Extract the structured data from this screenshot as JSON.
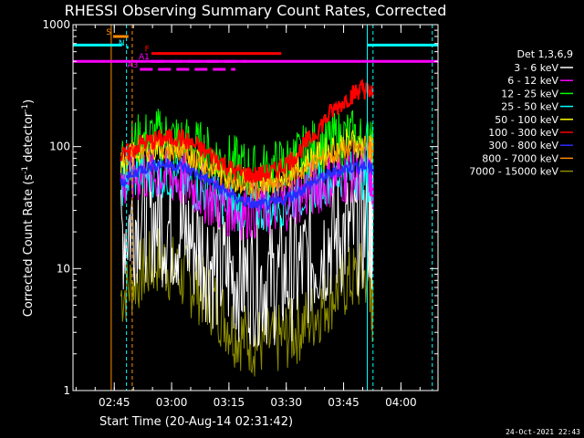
{
  "chart_data": {
    "type": "line",
    "title": "RHESSI Observing Summary Count Rates, Corrected",
    "xlabel": "Start Time (20-Aug-14 02:31:42)",
    "ylabel": "Corrected Count Rate (s⁻¹ detector⁻¹)",
    "ylabel_main": "Corrected Count Rate (s",
    "ylabel_sup1": "-1",
    "ylabel_mid": " detector",
    "ylabel_sup2": "-1",
    "ylabel_end": ")",
    "yscale": "log",
    "ylim": [
      1,
      1000
    ],
    "xlim_minutes": [
      2.5,
      98
    ],
    "y_ticks": [
      {
        "value": 1,
        "label": "1"
      },
      {
        "value": 10,
        "label": "10"
      },
      {
        "value": 100,
        "label": "100"
      },
      {
        "value": 1000,
        "label": "1000"
      }
    ],
    "x_ticks": [
      {
        "minute": 13.3,
        "label": "02:45"
      },
      {
        "minute": 28.3,
        "label": "03:00"
      },
      {
        "minute": 43.3,
        "label": "03:15"
      },
      {
        "minute": 58.3,
        "label": "03:30"
      },
      {
        "minute": 73.3,
        "label": "03:45"
      },
      {
        "minute": 88.3,
        "label": "04:00"
      }
    ],
    "legend_title": "Det 1,3,6,9",
    "legend_position": "right",
    "series": [
      {
        "name": "3 - 6 keV",
        "color": "#ffffff",
        "x": [
          15,
          20,
          25,
          30,
          35,
          40,
          45,
          50,
          55,
          60,
          65,
          70,
          75,
          80,
          81
        ],
        "y": [
          20,
          28,
          25,
          20,
          16,
          10,
          9,
          8,
          8,
          9,
          12,
          18,
          20,
          22,
          25
        ]
      },
      {
        "name": "6 - 12 keV",
        "color": "#ff00ff",
        "x": [
          15,
          20,
          25,
          30,
          35,
          40,
          45,
          50,
          55,
          60,
          65,
          70,
          75,
          80,
          81
        ],
        "y": [
          50,
          60,
          60,
          55,
          45,
          35,
          30,
          30,
          32,
          38,
          45,
          55,
          60,
          65,
          50
        ]
      },
      {
        "name": "12 - 25 keV",
        "color": "#00ff00",
        "x": [
          15,
          20,
          25,
          30,
          35,
          40,
          45,
          50,
          55,
          60,
          65,
          70,
          75,
          80,
          81
        ],
        "y": [
          80,
          110,
          120,
          110,
          95,
          80,
          70,
          60,
          65,
          75,
          95,
          110,
          120,
          100,
          90
        ]
      },
      {
        "name": "25 - 50 keV",
        "color": "#00ffff",
        "x": [
          15,
          20,
          25,
          30,
          35,
          40,
          45,
          50,
          55,
          60,
          65,
          70,
          75,
          80,
          81
        ],
        "y": [
          50,
          60,
          60,
          55,
          45,
          38,
          32,
          30,
          32,
          38,
          45,
          55,
          60,
          55,
          50
        ]
      },
      {
        "name": "50 - 100 keV",
        "color": "#ffff00",
        "x": [
          15,
          20,
          25,
          30,
          35,
          40,
          45,
          50,
          55,
          60,
          65,
          70,
          75,
          80,
          81
        ],
        "y": [
          70,
          95,
          100,
          95,
          80,
          65,
          55,
          50,
          55,
          65,
          80,
          95,
          110,
          100,
          90
        ]
      },
      {
        "name": "100 - 300 keV",
        "color": "#ff0000",
        "x": [
          15,
          20,
          25,
          30,
          35,
          40,
          45,
          50,
          55,
          60,
          65,
          70,
          75,
          78,
          81
        ],
        "y": [
          80,
          105,
          115,
          120,
          100,
          80,
          62,
          58,
          62,
          80,
          120,
          190,
          260,
          300,
          270
        ]
      },
      {
        "name": "300 - 800 keV",
        "color": "#2a2aff",
        "x": [
          15,
          20,
          25,
          30,
          35,
          40,
          45,
          50,
          55,
          60,
          65,
          70,
          75,
          80,
          81
        ],
        "y": [
          50,
          65,
          72,
          70,
          60,
          48,
          38,
          33,
          34,
          40,
          50,
          60,
          68,
          68,
          65
        ]
      },
      {
        "name": "800 - 7000 keV",
        "color": "#ff8c00",
        "x": [
          15,
          20,
          25,
          30,
          35,
          40,
          45,
          50,
          55,
          60,
          65,
          70,
          75,
          80,
          81
        ],
        "y": [
          75,
          95,
          100,
          95,
          80,
          62,
          50,
          45,
          48,
          58,
          70,
          85,
          95,
          100,
          95
        ]
      },
      {
        "name": "7000 - 15000 keV",
        "color": "#8c8c00",
        "x": [
          15,
          20,
          25,
          30,
          35,
          40,
          45,
          50,
          55,
          60,
          65,
          70,
          75,
          80,
          81
        ],
        "y": [
          6,
          9,
          12,
          9,
          7,
          5,
          3,
          2.5,
          2.5,
          3,
          4,
          6,
          8,
          9,
          4
        ]
      }
    ],
    "annotations": [
      {
        "text": "S",
        "color": "#ff8c00",
        "x_start": 13,
        "x_end": 17,
        "y": 800
      },
      {
        "text": "N",
        "color": "#00ffff",
        "x_start": 16.5,
        "x_end": 17,
        "y": 650
      },
      {
        "text": "F",
        "color": "#ff0000",
        "x_start": 23,
        "x_end": 57,
        "y": 580
      },
      {
        "text": "A1",
        "color": "#ff00ff",
        "x_start": 23,
        "x_end": 48,
        "y": 500
      },
      {
        "text": "A3",
        "color": "#ff00ff",
        "x_start": 20,
        "x_end": 45,
        "y": 430
      }
    ],
    "saa_bars": [
      {
        "x_start": 2.5,
        "x_end": 15.3,
        "y": 680,
        "color": "#00ffff"
      },
      {
        "x_start": 79.5,
        "x_end": 98,
        "y": 680,
        "color": "#00ffff"
      },
      {
        "x_start": 2.5,
        "x_end": 98,
        "y": 500,
        "color": "#ff00ff"
      }
    ],
    "vertical_lines": [
      {
        "x": 12.5,
        "color": "#ff8c00",
        "style": "solid"
      },
      {
        "x": 16.5,
        "color": "#00ffff",
        "style": "dashed"
      },
      {
        "x": 18.0,
        "color": "#ff8c00",
        "style": "dashed"
      },
      {
        "x": 79.5,
        "color": "#00ffff",
        "style": "solid"
      },
      {
        "x": 81.0,
        "color": "#00ffff",
        "style": "dashed"
      },
      {
        "x": 96.5,
        "color": "#00ffff",
        "style": "dashed"
      }
    ]
  },
  "footer": {
    "timestamp": "24-Oct-2021 22:43"
  },
  "colors": {
    "background": "#000000",
    "axes": "#ffffff"
  }
}
